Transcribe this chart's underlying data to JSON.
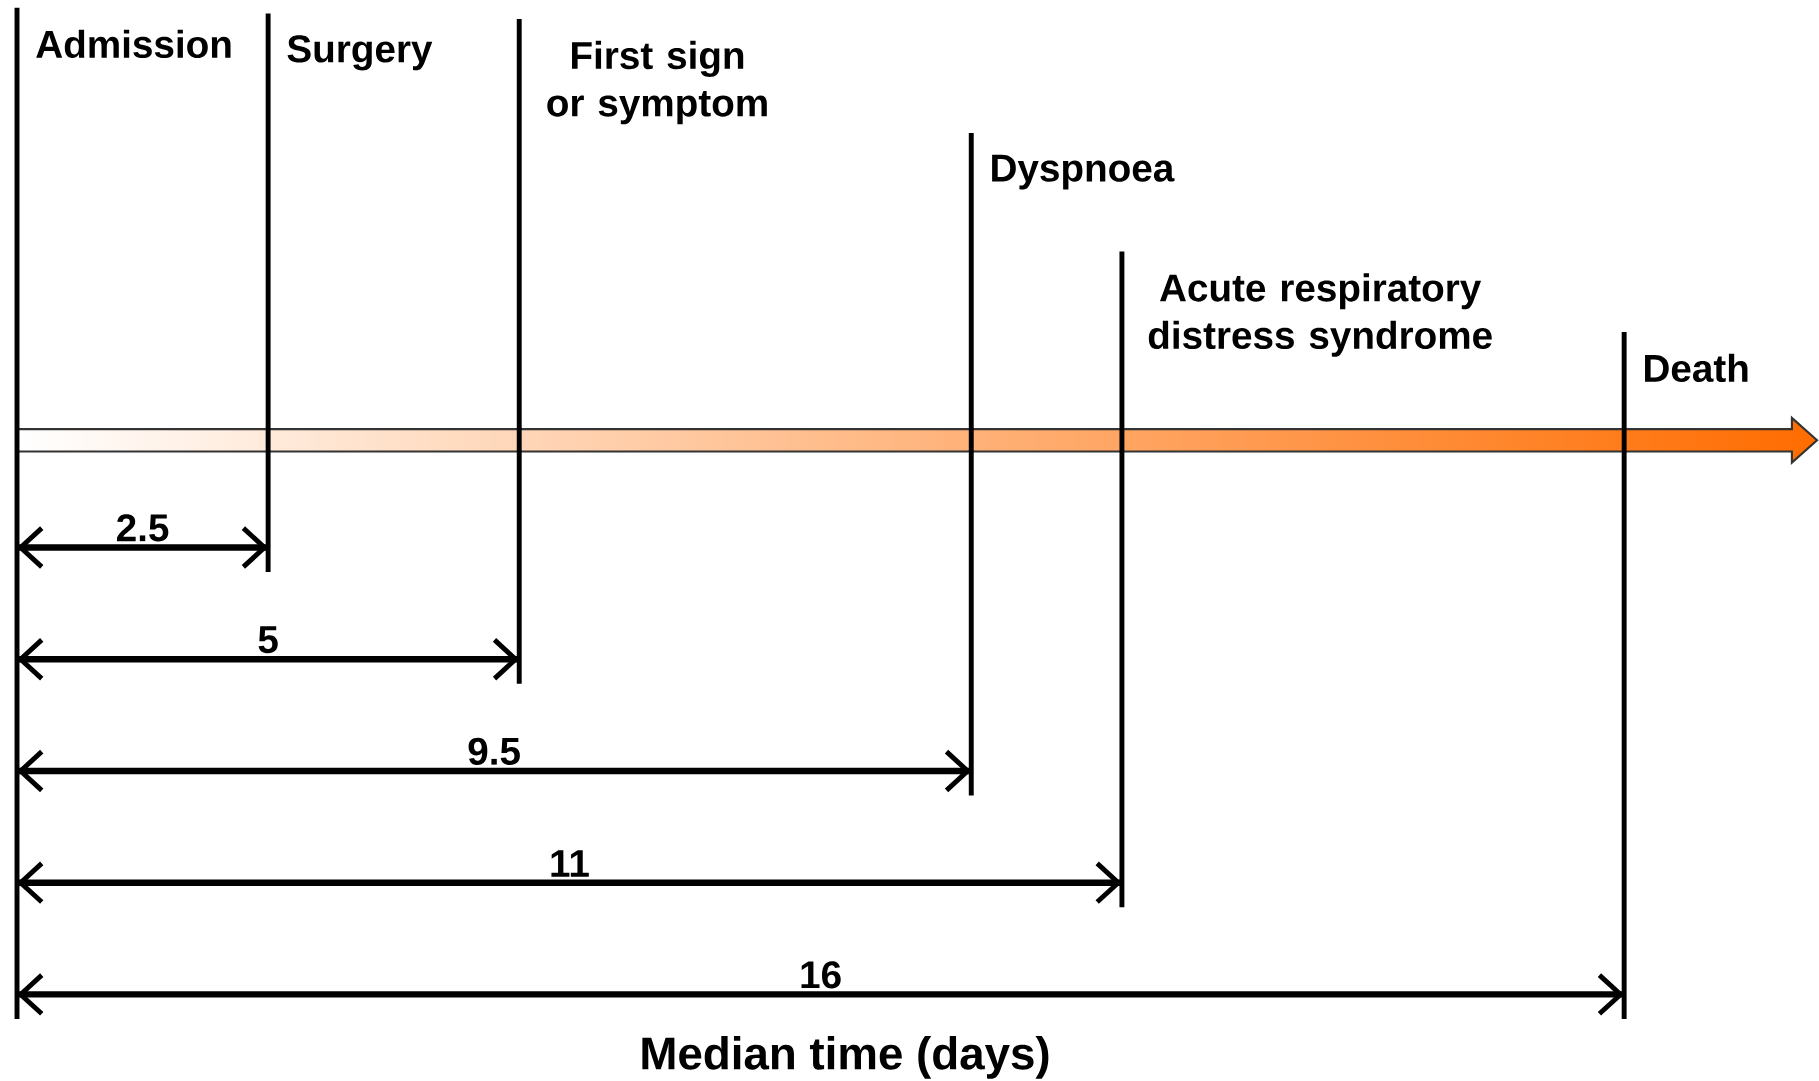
{
  "chart_data": {
    "type": "bar",
    "orientation": "horizontal",
    "xlabel": "Median time (days)",
    "categories": [
      null,
      null,
      null,
      null,
      null
    ],
    "values": [
      2.5,
      5,
      9.5,
      11,
      16
    ],
    "color": "#000000",
    "data_labels": true,
    "ref_lines": [
      {
        "axis": "x",
        "value": 0,
        "label": "Admission"
      },
      {
        "axis": "x",
        "value": 2.5,
        "label": "Surgery"
      },
      {
        "axis": "x",
        "value": 5,
        "label": "First sign or symptom"
      },
      {
        "axis": "x",
        "value": 9.5,
        "label": "Dyspnoea"
      },
      {
        "axis": "x",
        "value": 11,
        "label": "Acute respiratory distress syndrome"
      },
      {
        "axis": "x",
        "value": 16,
        "label": "Death"
      }
    ]
  }
}
